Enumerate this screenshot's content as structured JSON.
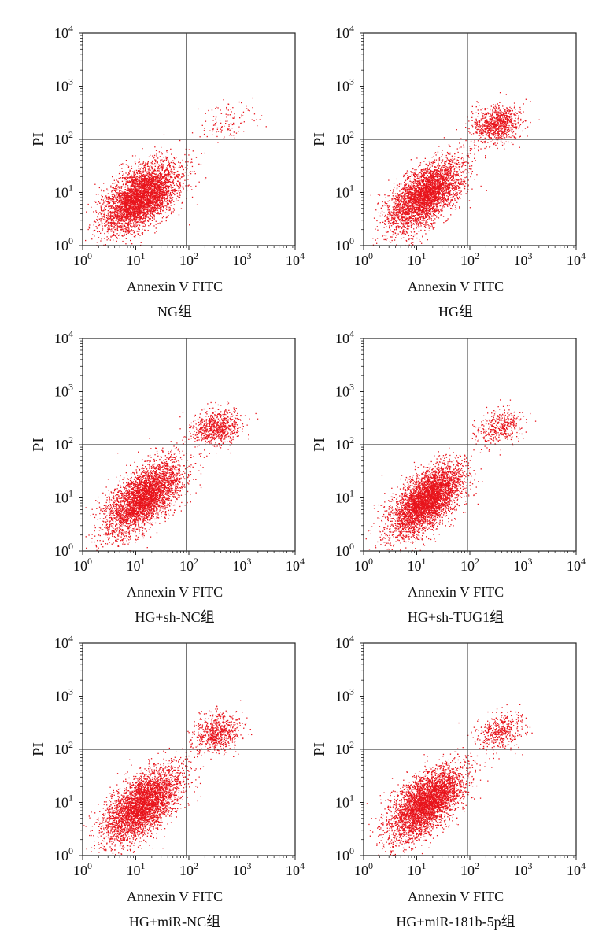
{
  "chart_data": [
    {
      "type": "scatter",
      "group": "NG组",
      "xlabel": "Annexin V FITC",
      "ylabel": "PI",
      "x_scale": "log",
      "y_scale": "log",
      "xlim": [
        1,
        10000
      ],
      "ylim": [
        1,
        10000
      ],
      "x_ticks": [
        "10⁰",
        "10¹",
        "10²",
        "10³",
        "10⁴"
      ],
      "y_ticks": [
        "10⁰",
        "10¹",
        "10²",
        "10³",
        "10⁴"
      ],
      "gate": {
        "x": 90,
        "y": 100
      },
      "point_color": "#e8141c",
      "clusters": [
        {
          "cx": 12,
          "cy": 8,
          "sx": 0.36,
          "sy": 0.33,
          "rho": 0.55,
          "n": 4200
        },
        {
          "cx": 500,
          "cy": 220,
          "sx": 0.25,
          "sy": 0.2,
          "rho": 0.2,
          "n": 120
        }
      ]
    },
    {
      "type": "scatter",
      "group": "HG组",
      "xlabel": "Annexin V FITC",
      "ylabel": "PI",
      "x_scale": "log",
      "y_scale": "log",
      "xlim": [
        1,
        10000
      ],
      "ylim": [
        1,
        10000
      ],
      "x_ticks": [
        "10⁰",
        "10¹",
        "10²",
        "10³",
        "10⁴"
      ],
      "y_ticks": [
        "10⁰",
        "10¹",
        "10²",
        "10³",
        "10⁴"
      ],
      "gate": {
        "x": 90,
        "y": 100
      },
      "point_color": "#e8141c",
      "clusters": [
        {
          "cx": 14,
          "cy": 9,
          "sx": 0.36,
          "sy": 0.34,
          "rho": 0.62,
          "n": 3600
        },
        {
          "cx": 320,
          "cy": 200,
          "sx": 0.22,
          "sy": 0.17,
          "rho": 0.2,
          "n": 900
        }
      ]
    },
    {
      "type": "scatter",
      "group": "HG+sh-NC组",
      "xlabel": "Annexin V FITC",
      "ylabel": "PI",
      "x_scale": "log",
      "y_scale": "log",
      "xlim": [
        1,
        10000
      ],
      "ylim": [
        1,
        10000
      ],
      "x_ticks": [
        "10⁰",
        "10¹",
        "10²",
        "10³",
        "10⁴"
      ],
      "y_ticks": [
        "10⁰",
        "10¹",
        "10²",
        "10³",
        "10⁴"
      ],
      "gate": {
        "x": 90,
        "y": 100
      },
      "point_color": "#e8141c",
      "clusters": [
        {
          "cx": 14,
          "cy": 10,
          "sx": 0.36,
          "sy": 0.35,
          "rho": 0.62,
          "n": 3700
        },
        {
          "cx": 330,
          "cy": 210,
          "sx": 0.22,
          "sy": 0.17,
          "rho": 0.2,
          "n": 750
        }
      ]
    },
    {
      "type": "scatter",
      "group": "HG+sh-TUG1组",
      "xlabel": "Annexin V FITC",
      "ylabel": "PI",
      "x_scale": "log",
      "y_scale": "log",
      "xlim": [
        1,
        10000
      ],
      "ylim": [
        1,
        10000
      ],
      "x_ticks": [
        "10⁰",
        "10¹",
        "10²",
        "10³",
        "10⁴"
      ],
      "y_ticks": [
        "10⁰",
        "10¹",
        "10²",
        "10³",
        "10⁴"
      ],
      "gate": {
        "x": 90,
        "y": 100
      },
      "point_color": "#e8141c",
      "clusters": [
        {
          "cx": 15,
          "cy": 9,
          "sx": 0.34,
          "sy": 0.33,
          "rho": 0.6,
          "n": 4000
        },
        {
          "cx": 380,
          "cy": 220,
          "sx": 0.2,
          "sy": 0.17,
          "rho": 0.2,
          "n": 380
        }
      ]
    },
    {
      "type": "scatter",
      "group": "HG+miR-NC组",
      "xlabel": "Annexin V FITC",
      "ylabel": "PI",
      "x_scale": "log",
      "y_scale": "log",
      "xlim": [
        1,
        10000
      ],
      "ylim": [
        1,
        10000
      ],
      "x_ticks": [
        "10⁰",
        "10¹",
        "10²",
        "10³",
        "10⁴"
      ],
      "y_ticks": [
        "10⁰",
        "10¹",
        "10²",
        "10³",
        "10⁴"
      ],
      "gate": {
        "x": 90,
        "y": 100
      },
      "point_color": "#e8141c",
      "clusters": [
        {
          "cx": 13,
          "cy": 9,
          "sx": 0.36,
          "sy": 0.34,
          "rho": 0.6,
          "n": 3700
        },
        {
          "cx": 330,
          "cy": 200,
          "sx": 0.22,
          "sy": 0.18,
          "rho": 0.2,
          "n": 700
        }
      ]
    },
    {
      "type": "scatter",
      "group": "HG+miR-181b-5p组",
      "xlabel": "Annexin V FITC",
      "ylabel": "PI",
      "x_scale": "log",
      "y_scale": "log",
      "xlim": [
        1,
        10000
      ],
      "ylim": [
        1,
        10000
      ],
      "x_ticks": [
        "10⁰",
        "10¹",
        "10²",
        "10³",
        "10⁴"
      ],
      "y_ticks": [
        "10⁰",
        "10¹",
        "10²",
        "10³",
        "10⁴"
      ],
      "gate": {
        "x": 90,
        "y": 100
      },
      "point_color": "#e8141c",
      "clusters": [
        {
          "cx": 15,
          "cy": 10,
          "sx": 0.35,
          "sy": 0.34,
          "rho": 0.6,
          "n": 3900
        },
        {
          "cx": 380,
          "cy": 220,
          "sx": 0.22,
          "sy": 0.18,
          "rho": 0.2,
          "n": 420
        }
      ]
    }
  ]
}
